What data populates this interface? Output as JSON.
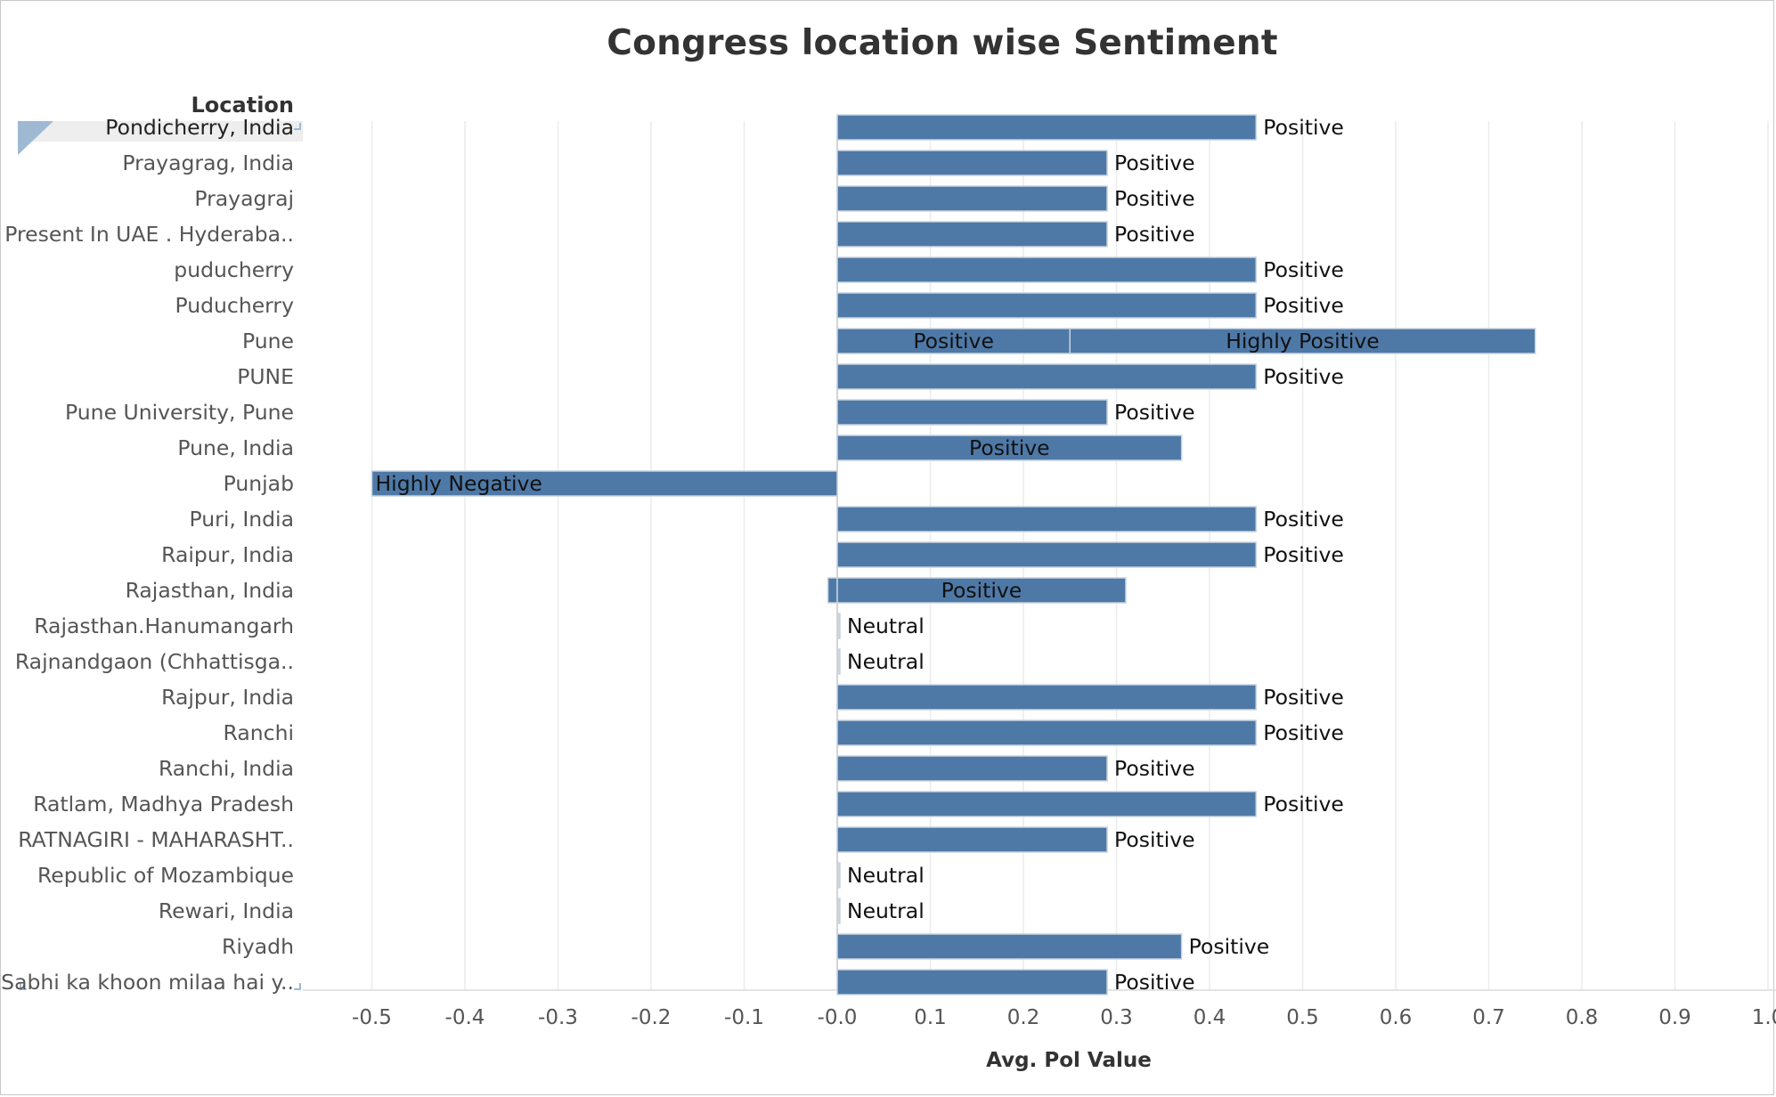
{
  "title": "Congress location wise Sentiment",
  "row_header": "Location",
  "chart_data": {
    "type": "bar",
    "orientation": "horizontal",
    "title": "Congress location wise Sentiment",
    "xlabel": "Avg. Pol Value",
    "ylabel": "Location",
    "xlim": [
      -0.5,
      1.0
    ],
    "xticks": [
      -0.5,
      -0.4,
      -0.3,
      -0.2,
      -0.1,
      0.0,
      0.1,
      0.2,
      0.3,
      0.4,
      0.5,
      0.6,
      0.7,
      0.8,
      0.9,
      1.0
    ],
    "xtick_labels": [
      "-0.5",
      "-0.4",
      "-0.3",
      "-0.2",
      "-0.1",
      "-0.0",
      "0.1",
      "0.2",
      "0.3",
      "0.4",
      "0.5",
      "0.6",
      "0.7",
      "0.8",
      "0.9",
      "1.0"
    ],
    "grid": true,
    "bar_color": "#4e79a7",
    "neutral_color": "#d3d3d3",
    "rows": [
      {
        "location": "Pondicherry, India",
        "segments": [
          {
            "start": 0,
            "end": 0.45,
            "label": "Positive"
          }
        ],
        "label_pos": "outside",
        "selected": true
      },
      {
        "location": "Prayagrag, India",
        "segments": [
          {
            "start": 0,
            "end": 0.29,
            "label": "Positive"
          }
        ],
        "label_pos": "outside"
      },
      {
        "location": "Prayagraj",
        "segments": [
          {
            "start": 0,
            "end": 0.29,
            "label": "Positive"
          }
        ],
        "label_pos": "outside"
      },
      {
        "location": "Present In UAE . Hyderaba..",
        "segments": [
          {
            "start": 0,
            "end": 0.29,
            "label": "Positive"
          }
        ],
        "label_pos": "outside"
      },
      {
        "location": "puducherry",
        "segments": [
          {
            "start": 0,
            "end": 0.45,
            "label": "Positive"
          }
        ],
        "label_pos": "outside"
      },
      {
        "location": "Puducherry",
        "segments": [
          {
            "start": 0,
            "end": 0.45,
            "label": "Positive"
          }
        ],
        "label_pos": "outside"
      },
      {
        "location": "Pune",
        "segments": [
          {
            "start": 0,
            "end": 0.25,
            "label": "Positive"
          },
          {
            "start": 0.25,
            "end": 0.75,
            "label": "Highly Positive"
          }
        ],
        "label_pos": "inside"
      },
      {
        "location": "PUNE",
        "segments": [
          {
            "start": 0,
            "end": 0.45,
            "label": "Positive"
          }
        ],
        "label_pos": "outside"
      },
      {
        "location": "Pune University, Pune",
        "segments": [
          {
            "start": 0,
            "end": 0.29,
            "label": "Positive"
          }
        ],
        "label_pos": "outside"
      },
      {
        "location": "Pune, India",
        "segments": [
          {
            "start": 0,
            "end": 0.37,
            "label": "Positive"
          }
        ],
        "label_pos": "inside"
      },
      {
        "location": "Punjab",
        "segments": [
          {
            "start": -0.5,
            "end": 0,
            "label": "Highly Negative"
          }
        ],
        "label_pos": "inside-left"
      },
      {
        "location": "Puri, India",
        "segments": [
          {
            "start": 0,
            "end": 0.45,
            "label": "Positive"
          }
        ],
        "label_pos": "outside"
      },
      {
        "location": "Raipur, India",
        "segments": [
          {
            "start": 0,
            "end": 0.45,
            "label": "Positive"
          }
        ],
        "label_pos": "outside"
      },
      {
        "location": "Rajasthan, India",
        "segments": [
          {
            "start": -0.01,
            "end": 0,
            "label": ""
          },
          {
            "start": 0,
            "end": 0.31,
            "label": "Positive"
          }
        ],
        "label_pos": "inside"
      },
      {
        "location": "Rajasthan.Hanumangarh",
        "segments": [
          {
            "start": 0,
            "end": 0,
            "label": "Neutral"
          }
        ],
        "label_pos": "outside"
      },
      {
        "location": "Rajnandgaon (Chhattisga..",
        "segments": [
          {
            "start": 0,
            "end": 0,
            "label": "Neutral"
          }
        ],
        "label_pos": "outside"
      },
      {
        "location": "Rajpur, India",
        "segments": [
          {
            "start": 0,
            "end": 0.45,
            "label": "Positive"
          }
        ],
        "label_pos": "outside"
      },
      {
        "location": "Ranchi",
        "segments": [
          {
            "start": 0,
            "end": 0.45,
            "label": "Positive"
          }
        ],
        "label_pos": "outside"
      },
      {
        "location": "Ranchi, India",
        "segments": [
          {
            "start": 0,
            "end": 0.29,
            "label": "Positive"
          }
        ],
        "label_pos": "outside"
      },
      {
        "location": "Ratlam, Madhya Pradesh",
        "segments": [
          {
            "start": 0,
            "end": 0.45,
            "label": "Positive"
          }
        ],
        "label_pos": "outside"
      },
      {
        "location": "RATNAGIRI - MAHARASHT..",
        "segments": [
          {
            "start": 0,
            "end": 0.29,
            "label": "Positive"
          }
        ],
        "label_pos": "outside"
      },
      {
        "location": "Republic of Mozambique",
        "segments": [
          {
            "start": 0,
            "end": 0,
            "label": "Neutral"
          }
        ],
        "label_pos": "outside"
      },
      {
        "location": "Rewari, India",
        "segments": [
          {
            "start": 0,
            "end": 0,
            "label": "Neutral"
          }
        ],
        "label_pos": "outside"
      },
      {
        "location": "Riyadh",
        "segments": [
          {
            "start": 0,
            "end": 0.37,
            "label": "Positive"
          }
        ],
        "label_pos": "outside"
      },
      {
        "location": "Sabhi ka khoon milaa hai y..",
        "segments": [
          {
            "start": 0,
            "end": 0.29,
            "label": "Positive"
          }
        ],
        "label_pos": "outside"
      }
    ]
  }
}
